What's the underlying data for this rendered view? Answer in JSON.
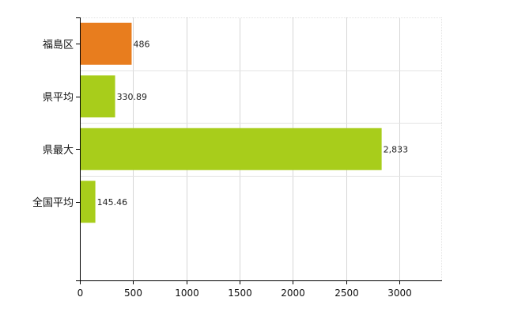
{
  "chart_data": {
    "type": "bar",
    "orientation": "horizontal",
    "title": "",
    "xlabel": "",
    "ylabel": "",
    "categories": [
      "福島区",
      "県平均",
      "県最大",
      "全国平均"
    ],
    "values": [
      486,
      330.89,
      2833,
      145.46
    ],
    "value_labels": [
      "486",
      "330.89",
      "2,833",
      "145.46"
    ],
    "bar_colors": [
      "#e87d1e",
      "#a8cd1b",
      "#a8cd1b",
      "#a8cd1b"
    ],
    "xlim": [
      0,
      3400
    ],
    "xticks": [
      0,
      500,
      1000,
      1500,
      2000,
      2500,
      3000
    ],
    "grid": true,
    "legend": "none"
  }
}
